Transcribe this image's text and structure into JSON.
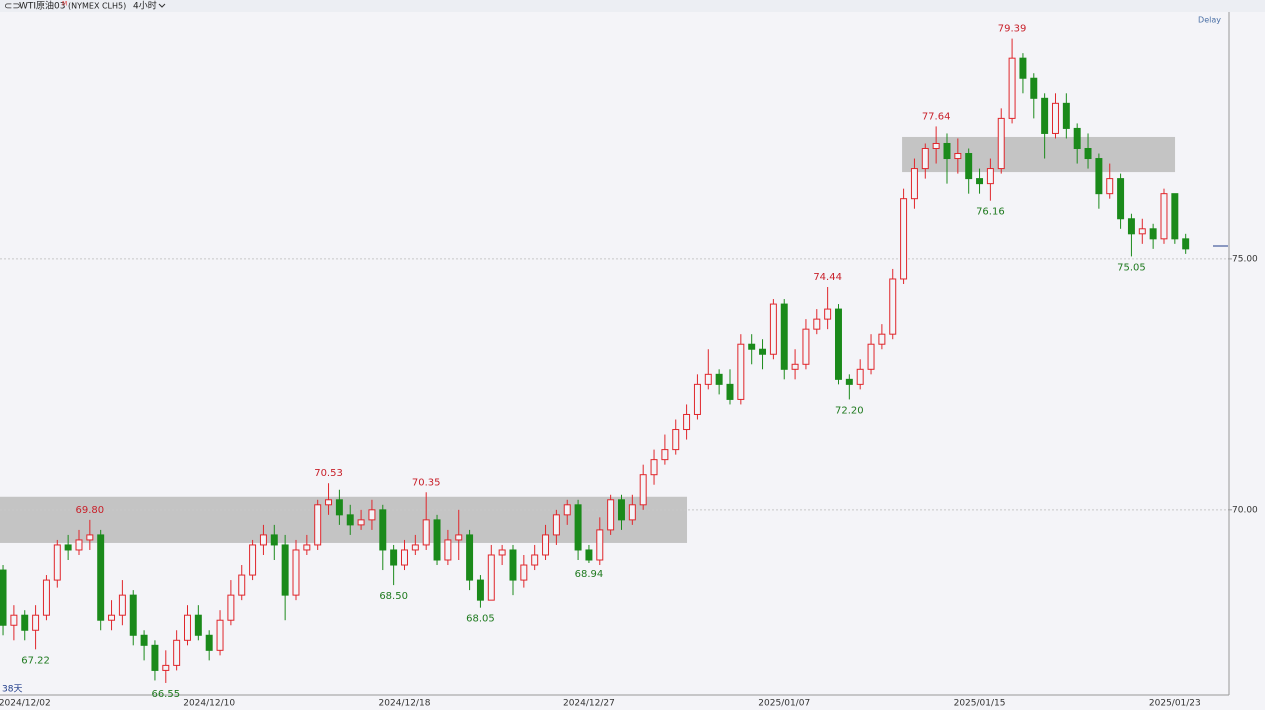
{
  "chart_data": {
    "type": "candlestick",
    "title": "WTI原油03",
    "title_sup": "M",
    "symbol": "(NYMEX CLH5)",
    "period": "4小时",
    "delay": "Delay",
    "corner_label": "38天",
    "categories": [
      null,
      null,
      "2024/12/02",
      null,
      null,
      null,
      null,
      null,
      null,
      null,
      null,
      null,
      null,
      null,
      null,
      null,
      null,
      null,
      null,
      "2024/12/10",
      null,
      null,
      null,
      null,
      null,
      null,
      null,
      null,
      null,
      null,
      null,
      null,
      null,
      null,
      null,
      null,
      null,
      "2024/12/18",
      null,
      null,
      null,
      null,
      null,
      null,
      null,
      null,
      null,
      null,
      null,
      null,
      null,
      null,
      null,
      null,
      "2024/12/27",
      null,
      null,
      null,
      null,
      null,
      null,
      null,
      null,
      null,
      null,
      null,
      null,
      null,
      null,
      null,
      null,
      null,
      "2025/01/07",
      null,
      null,
      null,
      null,
      null,
      null,
      null,
      null,
      null,
      null,
      null,
      null,
      null,
      null,
      null,
      null,
      null,
      "2025/01/15",
      null,
      null,
      null,
      null,
      null,
      null,
      null,
      null,
      null,
      null,
      null,
      null,
      null,
      null,
      null,
      null,
      null,
      "2025/01/23",
      null
    ],
    "open": [
      68.8,
      67.7,
      67.9,
      67.6,
      67.9,
      68.6,
      69.3,
      69.2,
      69.4,
      69.5,
      67.8,
      67.9,
      68.3,
      67.5,
      67.3,
      66.8,
      66.9,
      67.4,
      67.9,
      67.5,
      67.2,
      67.8,
      68.3,
      68.7,
      69.3,
      69.5,
      69.3,
      68.3,
      69.2,
      69.3,
      70.1,
      70.2,
      69.9,
      69.7,
      69.8,
      70.0,
      69.2,
      68.9,
      69.2,
      69.3,
      69.8,
      69.0,
      69.4,
      69.5,
      68.6,
      68.2,
      69.1,
      69.2,
      68.6,
      68.9,
      69.1,
      69.5,
      69.9,
      70.1,
      69.2,
      69.0,
      69.6,
      70.2,
      69.8,
      70.1,
      70.7,
      71.0,
      71.2,
      71.6,
      71.9,
      72.5,
      72.7,
      72.5,
      72.2,
      73.3,
      73.2,
      73.1,
      74.1,
      72.8,
      72.9,
      73.6,
      73.8,
      74.0,
      72.6,
      72.5,
      72.8,
      73.3,
      73.5,
      74.6,
      76.2,
      76.8,
      77.2,
      77.3,
      77.0,
      77.1,
      76.6,
      76.5,
      76.8,
      77.8,
      79.0,
      78.6,
      78.2,
      77.5,
      78.1,
      77.6,
      77.2,
      77.0,
      76.3,
      76.6,
      75.8,
      75.5,
      75.6,
      75.4,
      76.3,
      75.4
    ],
    "high": [
      68.9,
      68.1,
      68.0,
      68.1,
      68.7,
      69.4,
      69.5,
      69.6,
      69.8,
      69.6,
      68.2,
      68.6,
      68.4,
      67.6,
      67.4,
      67.2,
      67.6,
      68.1,
      68.1,
      67.6,
      68.0,
      68.6,
      68.9,
      69.4,
      69.7,
      69.7,
      69.5,
      69.4,
      69.5,
      70.2,
      70.53,
      70.4,
      70.1,
      70.0,
      70.2,
      70.1,
      69.3,
      69.4,
      69.5,
      70.35,
      69.9,
      69.6,
      70.0,
      69.6,
      68.7,
      69.3,
      69.3,
      69.3,
      69.1,
      69.3,
      69.7,
      70.0,
      70.2,
      70.2,
      69.3,
      69.85,
      70.3,
      70.3,
      70.3,
      70.9,
      71.2,
      71.5,
      71.8,
      72.1,
      72.7,
      73.2,
      72.8,
      72.8,
      73.5,
      73.5,
      73.4,
      74.2,
      74.2,
      73.2,
      73.8,
      74.0,
      74.44,
      74.1,
      72.7,
      73.0,
      73.5,
      73.7,
      74.8,
      76.4,
      77.0,
      77.3,
      77.64,
      77.5,
      77.4,
      77.2,
      76.8,
      77.0,
      78.0,
      79.39,
      79.1,
      78.7,
      78.3,
      78.3,
      78.3,
      77.7,
      77.5,
      77.1,
      76.9,
      76.7,
      75.9,
      75.8,
      75.7,
      76.4,
      76.3,
      75.5
    ],
    "low": [
      67.5,
      67.4,
      67.4,
      67.22,
      67.8,
      68.45,
      69.0,
      69.1,
      69.2,
      67.6,
      67.6,
      67.7,
      67.3,
      67.0,
      66.6,
      66.55,
      66.8,
      67.3,
      67.4,
      67.0,
      67.1,
      67.7,
      68.2,
      68.6,
      69.1,
      69.0,
      67.8,
      68.2,
      69.1,
      69.2,
      69.9,
      69.7,
      69.5,
      69.6,
      69.6,
      68.8,
      68.5,
      68.8,
      69.1,
      69.2,
      68.9,
      68.9,
      69.0,
      68.4,
      68.05,
      68.2,
      68.9,
      68.3,
      68.45,
      68.8,
      69.0,
      69.3,
      69.7,
      69.0,
      68.94,
      68.9,
      69.5,
      69.6,
      69.7,
      70.0,
      70.5,
      70.9,
      71.1,
      71.4,
      71.8,
      72.4,
      72.3,
      72.1,
      72.1,
      72.9,
      72.8,
      73.0,
      72.6,
      72.6,
      72.8,
      73.5,
      73.6,
      72.5,
      72.2,
      72.4,
      72.7,
      73.2,
      73.4,
      74.5,
      76.0,
      76.6,
      76.9,
      76.5,
      76.7,
      76.3,
      76.3,
      76.16,
      76.7,
      77.7,
      78.3,
      77.8,
      77.0,
      77.4,
      77.4,
      76.9,
      76.8,
      76.0,
      76.2,
      75.6,
      75.05,
      75.3,
      75.2,
      75.3,
      75.3,
      75.1
    ],
    "close": [
      67.7,
      67.9,
      67.6,
      67.9,
      68.6,
      69.3,
      69.2,
      69.4,
      69.5,
      67.8,
      67.9,
      68.3,
      67.5,
      67.3,
      66.8,
      66.9,
      67.4,
      67.9,
      67.5,
      67.2,
      67.8,
      68.3,
      68.7,
      69.3,
      69.5,
      69.3,
      68.3,
      69.2,
      69.3,
      70.1,
      70.2,
      69.9,
      69.7,
      69.8,
      70.0,
      69.2,
      68.9,
      69.2,
      69.3,
      69.8,
      69.0,
      69.4,
      69.5,
      68.6,
      68.2,
      69.1,
      69.2,
      68.6,
      68.9,
      69.1,
      69.5,
      69.9,
      70.1,
      69.2,
      69.0,
      69.6,
      70.2,
      69.8,
      70.1,
      70.7,
      71.0,
      71.2,
      71.6,
      71.9,
      72.5,
      72.7,
      72.5,
      72.2,
      73.3,
      73.2,
      73.1,
      74.1,
      72.8,
      72.9,
      73.6,
      73.8,
      74.0,
      72.6,
      72.5,
      72.8,
      73.3,
      73.5,
      74.6,
      76.2,
      76.8,
      77.2,
      77.3,
      77.0,
      77.1,
      76.6,
      76.5,
      76.8,
      77.8,
      79.0,
      78.6,
      78.2,
      77.5,
      78.1,
      77.6,
      77.2,
      77.0,
      76.3,
      76.6,
      75.8,
      75.5,
      75.6,
      75.4,
      76.3,
      75.4,
      75.2
    ],
    "up_color": "#e0262b",
    "down_color": "#1b8a1b",
    "annotations": [
      {
        "value": 69.8,
        "label": "69.80"
      },
      {
        "value": 67.22,
        "label": "67.22"
      },
      {
        "value": 66.55,
        "label": "66.55"
      },
      {
        "value": 70.53,
        "label": "70.53"
      },
      {
        "value": 68.5,
        "label": "68.50"
      },
      {
        "value": 70.35,
        "label": "70.35"
      },
      {
        "value": 68.05,
        "label": "68.05"
      },
      {
        "value": 68.94,
        "label": "68.94"
      },
      {
        "value": 74.44,
        "label": "74.44"
      },
      {
        "value": 72.2,
        "label": "72.20"
      },
      {
        "value": 77.64,
        "label": "77.64"
      },
      {
        "value": 76.16,
        "label": "76.16"
      },
      {
        "value": 79.39,
        "label": "79.39"
      },
      {
        "value": 75.05,
        "label": "75.05"
      }
    ],
    "zones": [
      {
        "xlim": [
          -0.28,
          63.04
        ],
        "ylim": [
          69.34,
          70.26
        ]
      },
      {
        "xlim": [
          82.86,
          108.02
        ],
        "ylim": [
          76.73,
          77.43
        ]
      }
    ],
    "xlim": [
      -0.28,
      112.9
    ],
    "ylim": [
      66.31,
      79.92
    ],
    "yticks": [
      {
        "value": 70,
        "label": "70.00"
      },
      {
        "value": 75,
        "label": "75.00"
      }
    ],
    "grid": true
  }
}
